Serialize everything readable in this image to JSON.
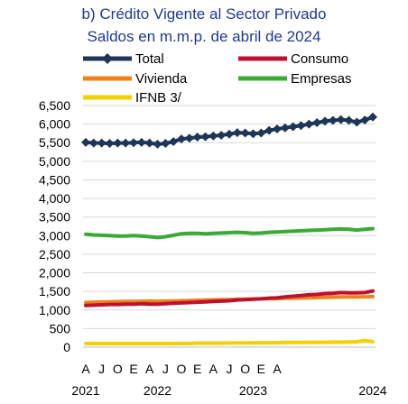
{
  "chart_data": {
    "type": "line",
    "title": "b) Crédito Vigente al Sector Privado",
    "subtitle": "Saldos en m.m.p. de abril de 2024",
    "ylim": [
      0,
      6500
    ],
    "yticks": [
      "0",
      "500",
      "1,000",
      "1,500",
      "2,000",
      "2,500",
      "3,000",
      "3,500",
      "4,000",
      "4,500",
      "5,000",
      "5,500",
      "6,000",
      "6,500"
    ],
    "ytick_values": [
      0,
      500,
      1000,
      1500,
      2000,
      2500,
      3000,
      3500,
      4000,
      4500,
      5000,
      5500,
      6000,
      6500
    ],
    "xtick_labels": [
      "A",
      "J",
      "O",
      "E",
      "A",
      "J",
      "O",
      "E",
      "A",
      "J",
      "O",
      "E",
      "A"
    ],
    "xtick_index": [
      0,
      2,
      4,
      6,
      8,
      10,
      12,
      14,
      16,
      18,
      20,
      22,
      24
    ],
    "year_labels": [
      "2021",
      "2022",
      "2023",
      "2024"
    ],
    "year_index": [
      0,
      9,
      21,
      36
    ],
    "grid": true,
    "legend": "top",
    "series": [
      {
        "name": "Total",
        "color": "#1f3557",
        "marker": "diamond",
        "values": [
          5510,
          5490,
          5490,
          5480,
          5490,
          5490,
          5500,
          5510,
          5490,
          5460,
          5480,
          5530,
          5600,
          5620,
          5650,
          5660,
          5680,
          5700,
          5730,
          5770,
          5760,
          5740,
          5760,
          5830,
          5870,
          5900,
          5930,
          5960,
          6000,
          6040,
          6080,
          6100,
          6120,
          6100,
          6050,
          6110,
          6190
        ]
      },
      {
        "name": "Consumo",
        "color": "#c0102f",
        "marker": "none",
        "values": [
          1120,
          1130,
          1140,
          1150,
          1150,
          1160,
          1160,
          1170,
          1160,
          1160,
          1170,
          1180,
          1190,
          1200,
          1210,
          1220,
          1230,
          1240,
          1250,
          1270,
          1280,
          1290,
          1300,
          1320,
          1330,
          1350,
          1370,
          1390,
          1410,
          1420,
          1440,
          1450,
          1470,
          1460,
          1460,
          1470,
          1510
        ]
      },
      {
        "name": "Vivienda",
        "color": "#f0821e",
        "marker": "none",
        "values": [
          1200,
          1210,
          1215,
          1220,
          1225,
          1230,
          1230,
          1235,
          1240,
          1235,
          1240,
          1245,
          1250,
          1255,
          1260,
          1265,
          1270,
          1275,
          1280,
          1285,
          1290,
          1295,
          1300,
          1305,
          1310,
          1315,
          1320,
          1325,
          1330,
          1335,
          1340,
          1345,
          1350,
          1350,
          1350,
          1355,
          1360
        ]
      },
      {
        "name": "Empresas",
        "color": "#3aaa35",
        "marker": "none",
        "values": [
          3040,
          3020,
          3010,
          3000,
          2990,
          2990,
          3000,
          2990,
          2970,
          2950,
          2970,
          3010,
          3050,
          3060,
          3060,
          3050,
          3060,
          3070,
          3080,
          3090,
          3080,
          3060,
          3070,
          3090,
          3100,
          3110,
          3120,
          3130,
          3140,
          3150,
          3160,
          3170,
          3180,
          3170,
          3150,
          3170,
          3190
        ]
      },
      {
        "name": "IFNB 3/",
        "color": "#f5d000",
        "marker": "none",
        "values": [
          100,
          100,
          100,
          100,
          100,
          100,
          100,
          100,
          100,
          100,
          100,
          100,
          100,
          100,
          110,
          110,
          110,
          110,
          115,
          115,
          115,
          115,
          120,
          120,
          120,
          125,
          125,
          125,
          130,
          130,
          130,
          135,
          135,
          140,
          145,
          180,
          150
        ]
      }
    ]
  }
}
